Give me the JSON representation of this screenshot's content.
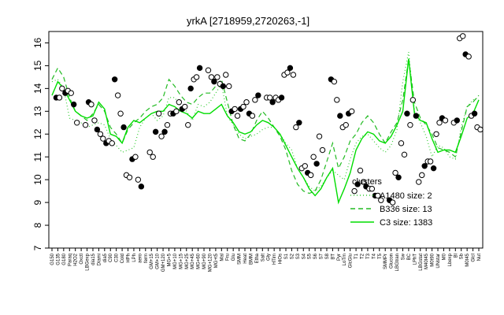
{
  "chart_data": {
    "type": "line",
    "title": "yrkA [2718959,2720263,-1]",
    "xlabel": "",
    "ylabel": "",
    "ylim": [
      7,
      16.5
    ],
    "yticks": [
      7,
      8,
      9,
      10,
      11,
      12,
      13,
      14,
      15,
      16
    ],
    "x_tick_labels": [
      "G150",
      "G135",
      "G180",
      "Paraq",
      "H2O2",
      "Oxctl",
      "LBGexp",
      "dia15",
      "Diami",
      "dia5",
      "C90",
      "C30",
      "Cold",
      "HPh",
      "LPh",
      "aero",
      "ferm",
      "GM+15",
      "GM+10",
      "GM+120",
      "MG+5",
      "MG+10",
      "MG+15",
      "MG+25",
      "MG+45",
      "MG+60",
      "MG+90",
      "MG+120",
      "MG+t5",
      "Mal",
      "Fru",
      "Glu",
      "SMM",
      "Heat",
      "BMM",
      "Etha",
      "Salt",
      "Gly",
      "HTim",
      "HiOs",
      "S1",
      "S2",
      "S3",
      "S4",
      "S5",
      "S6",
      "S7",
      "S8",
      "BT",
      "Pyr",
      "LoTm",
      "GlcGlu",
      "T1",
      "T2",
      "T3",
      "T4",
      "T5",
      "SMMPr",
      "Glucon",
      "LBGtran",
      "Sw",
      "BC",
      "LPhT",
      "LBGstat",
      "M40t45",
      "M0t90",
      "UNstar",
      "M0",
      "Lbexp",
      "Bl",
      "Sb",
      "M0t45",
      "GlcI",
      "Nut"
    ],
    "series": [
      {
        "name": "A1480 size: 2",
        "style": "dotted",
        "values": [
          14.3,
          14.4,
          14.0,
          12.7,
          12.6,
          12.5,
          12.3,
          12.4,
          12.5,
          12.4,
          11.8,
          11.5,
          11.2,
          11.3,
          11.4,
          12.3,
          12.7,
          12.9,
          12.6,
          12.8,
          13.6,
          13.6,
          13.2,
          13.0,
          12.6,
          13.3,
          13.2,
          13.4,
          13.8,
          14.2,
          12.8,
          12.4,
          12.0,
          11.8,
          11.9,
          12.0,
          12.2,
          12.3,
          12.3,
          12.0,
          11.6,
          11.3,
          10.5,
          10.1,
          9.7,
          9.5,
          9.7,
          10.1,
          10.4,
          10.2,
          10.0,
          10.9,
          11.6,
          11.9,
          12.0,
          11.7,
          11.4,
          11.2,
          11.5,
          12.2,
          14.3,
          15.6,
          13.0,
          12.5,
          11.9,
          11.0,
          11.5,
          11.4,
          11.0,
          10.9,
          12.3,
          13.2,
          13.5,
          13.6
        ]
      },
      {
        "name": "B336 size: 13",
        "style": "dashed",
        "values": [
          14.4,
          14.9,
          14.5,
          13.6,
          13.0,
          12.8,
          12.6,
          12.9,
          13.3,
          13.0,
          12.3,
          12.0,
          11.6,
          12.2,
          12.5,
          12.7,
          13.0,
          13.2,
          13.3,
          13.6,
          14.4,
          14.1,
          13.7,
          13.4,
          13.3,
          13.6,
          13.8,
          13.8,
          14.1,
          14.4,
          13.4,
          12.4,
          11.8,
          11.7,
          12.0,
          12.6,
          13.0,
          12.7,
          12.3,
          11.9,
          11.3,
          10.4,
          9.8,
          9.5,
          9.4,
          9.5,
          10.0,
          10.8,
          11.6,
          10.5,
          11.0,
          11.7,
          12.0,
          12.5,
          12.8,
          12.5,
          12.0,
          11.6,
          12.1,
          12.5,
          13.5,
          15.3,
          13.4,
          12.7,
          12.4,
          12.0,
          11.4,
          11.3,
          11.2,
          11.0,
          12.1,
          13.2,
          13.4,
          13.7
        ]
      },
      {
        "name": "C3 size: 1383",
        "style": "solid",
        "values": [
          13.7,
          14.3,
          14.0,
          13.5,
          13.0,
          12.8,
          12.7,
          12.8,
          13.4,
          13.1,
          12.0,
          11.9,
          11.6,
          12.3,
          12.6,
          12.5,
          12.7,
          12.9,
          13.0,
          13.0,
          13.3,
          13.2,
          13.0,
          12.9,
          12.7,
          13.0,
          12.9,
          12.9,
          13.1,
          13.3,
          12.8,
          12.5,
          12.1,
          12.0,
          12.1,
          12.4,
          12.6,
          12.5,
          12.3,
          12.0,
          11.5,
          11.0,
          10.5,
          10.1,
          9.6,
          9.3,
          9.6,
          10.1,
          10.5,
          9.0,
          9.6,
          10.3,
          11.3,
          11.8,
          12.1,
          12.0,
          11.7,
          11.6,
          11.9,
          12.4,
          13.0,
          15.3,
          12.9,
          12.6,
          12.5,
          11.8,
          11.2,
          11.3,
          11.3,
          11.2,
          11.9,
          12.7,
          12.9,
          13.5
        ]
      }
    ],
    "points": [
      [
        1,
        13.6
      ],
      [
        1,
        13.6
      ],
      [
        2,
        14.0
      ],
      [
        2,
        13.8
      ],
      [
        3,
        13.9
      ],
      [
        3,
        13.8
      ],
      [
        4,
        13.3
      ],
      [
        4,
        12.5
      ],
      [
        5,
        12.4
      ],
      [
        5,
        13.4
      ],
      [
        6,
        13.3
      ],
      [
        6,
        12.6
      ],
      [
        7,
        12.2
      ],
      [
        7,
        12.0
      ],
      [
        8,
        11.8
      ],
      [
        8,
        11.6
      ],
      [
        9,
        11.7
      ],
      [
        9,
        11.6
      ],
      [
        10,
        14.4
      ],
      [
        10,
        13.7
      ],
      [
        11,
        12.9
      ],
      [
        11,
        12.3
      ],
      [
        12,
        10.2
      ],
      [
        12,
        10.1
      ],
      [
        13,
        10.9
      ],
      [
        13,
        11.0
      ],
      [
        14,
        10.0
      ],
      [
        14,
        9.7
      ],
      [
        15,
        11.2
      ],
      [
        15,
        11.0
      ],
      [
        16,
        12.1
      ],
      [
        16,
        12.9
      ],
      [
        17,
        11.9
      ],
      [
        17,
        12.1
      ],
      [
        18,
        12.4
      ],
      [
        18,
        12.9
      ],
      [
        19,
        12.9
      ],
      [
        19,
        13.0
      ],
      [
        20,
        13.4
      ],
      [
        20,
        13.1
      ],
      [
        21,
        13.2
      ],
      [
        21,
        12.4
      ],
      [
        22,
        14.0
      ],
      [
        22,
        14.4
      ],
      [
        23,
        14.5
      ],
      [
        23,
        14.9
      ],
      [
        24,
        14.8
      ],
      [
        24,
        14.5
      ],
      [
        25,
        14.3
      ],
      [
        25,
        14.5
      ],
      [
        26,
        14.2
      ],
      [
        26,
        14.1
      ],
      [
        27,
        14.6
      ],
      [
        27,
        14.1
      ],
      [
        28,
        13.0
      ],
      [
        28,
        13.1
      ],
      [
        29,
        12.8
      ],
      [
        29,
        13.1
      ],
      [
        30,
        13.2
      ],
      [
        30,
        13.4
      ],
      [
        31,
        12.9
      ],
      [
        31,
        12.8
      ],
      [
        32,
        13.5
      ],
      [
        32,
        13.7
      ],
      [
        33,
        13.6
      ],
      [
        33,
        13.6
      ],
      [
        34,
        13.4
      ],
      [
        34,
        13.6
      ],
      [
        35,
        13.5
      ],
      [
        35,
        13.6
      ],
      [
        36,
        14.6
      ],
      [
        36,
        14.7
      ],
      [
        37,
        14.9
      ],
      [
        37,
        14.6
      ],
      [
        38,
        12.3
      ],
      [
        38,
        12.5
      ],
      [
        39,
        10.5
      ],
      [
        39,
        10.6
      ],
      [
        40,
        10.3
      ],
      [
        40,
        10.2
      ],
      [
        41,
        11.0
      ],
      [
        41,
        10.7
      ],
      [
        42,
        11.9
      ],
      [
        42,
        11.3
      ],
      [
        43,
        14.4
      ],
      [
        43,
        14.3
      ],
      [
        44,
        13.5
      ],
      [
        44,
        12.8
      ],
      [
        45,
        12.3
      ],
      [
        45,
        12.4
      ],
      [
        46,
        12.9
      ],
      [
        46,
        13.0
      ],
      [
        47,
        9.5
      ],
      [
        47,
        9.8
      ],
      [
        48,
        10.4
      ],
      [
        48,
        9.9
      ],
      [
        49,
        9.7
      ],
      [
        49,
        9.6
      ],
      [
        50,
        9.6
      ],
      [
        50,
        9.3
      ],
      [
        51,
        9.3
      ],
      [
        51,
        9.1
      ],
      [
        52,
        9.1
      ],
      [
        52,
        9.0
      ],
      [
        53,
        10.3
      ],
      [
        53,
        10.1
      ],
      [
        54,
        11.6
      ],
      [
        54,
        11.1
      ],
      [
        55,
        12.9
      ],
      [
        55,
        12.4
      ],
      [
        56,
        13.5
      ],
      [
        56,
        12.8
      ],
      [
        57,
        9.9
      ],
      [
        57,
        10.2
      ],
      [
        58,
        10.6
      ],
      [
        58,
        10.8
      ],
      [
        59,
        10.8
      ],
      [
        59,
        10.5
      ],
      [
        60,
        12.0
      ],
      [
        60,
        12.5
      ],
      [
        61,
        12.7
      ],
      [
        61,
        12.6
      ],
      [
        62,
        12.5
      ],
      [
        62,
        12.6
      ],
      [
        63,
        16.2
      ],
      [
        63,
        16.3
      ],
      [
        64,
        15.5
      ],
      [
        64,
        15.4
      ],
      [
        65,
        12.8
      ],
      [
        65,
        12.9
      ],
      [
        66,
        12.3
      ],
      [
        66,
        12.2
      ]
    ]
  }
}
